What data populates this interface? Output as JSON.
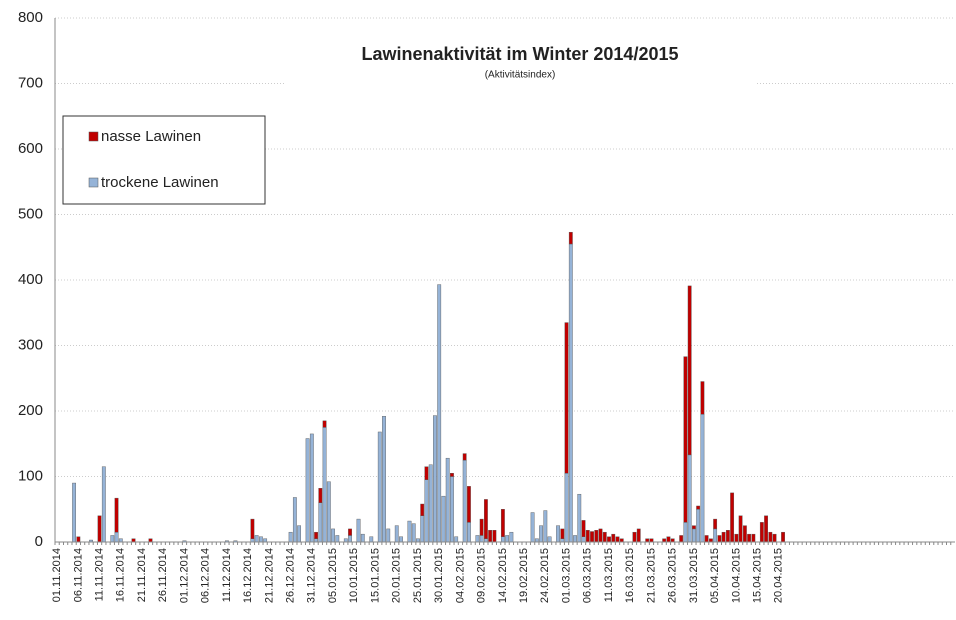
{
  "chart_data": {
    "type": "stacked_bar",
    "title": "Lawinenaktivität im Winter 2014/2015",
    "subtitle": "(Aktivitätsindex)",
    "legend": "upper left",
    "grid": true,
    "ylim": [
      0,
      800
    ],
    "yticks": [
      0,
      100,
      200,
      300,
      400,
      500,
      600,
      700,
      800
    ],
    "categories": [
      "01.11.2014",
      null,
      null,
      null,
      null,
      "06.11.2014",
      null,
      null,
      null,
      null,
      "11.11.2014",
      null,
      null,
      null,
      null,
      "16.11.2014",
      null,
      null,
      null,
      null,
      "21.11.2014",
      null,
      null,
      null,
      null,
      "26.11.2014",
      null,
      null,
      null,
      null,
      "01.12.2014",
      null,
      null,
      null,
      null,
      "06.12.2014",
      null,
      null,
      null,
      null,
      "11.12.2014",
      null,
      null,
      null,
      null,
      "16.12.2014",
      null,
      null,
      null,
      null,
      "21.12.2014",
      null,
      null,
      null,
      null,
      "26.12.2014",
      null,
      null,
      null,
      null,
      "31.12.2014",
      null,
      null,
      null,
      null,
      "05.01.2015",
      null,
      null,
      null,
      null,
      "10.01.2015",
      null,
      null,
      null,
      null,
      "15.01.2015",
      null,
      null,
      null,
      null,
      "20.01.2015",
      null,
      null,
      null,
      null,
      "25.01.2015",
      null,
      null,
      null,
      null,
      "30.01.2015",
      null,
      null,
      null,
      null,
      "04.02.2015",
      null,
      null,
      null,
      null,
      "09.02.2015",
      null,
      null,
      null,
      null,
      "14.02.2015",
      null,
      null,
      null,
      null,
      "19.02.2015",
      null,
      null,
      null,
      null,
      "24.02.2015",
      null,
      null,
      null,
      null,
      "01.03.2015",
      null,
      null,
      null,
      null,
      "06.03.2015",
      null,
      null,
      null,
      null,
      "11.03.2015",
      null,
      null,
      null,
      null,
      "16.03.2015",
      null,
      null,
      null,
      null,
      "21.03.2015",
      null,
      null,
      null,
      null,
      "26.03.2015",
      null,
      null,
      null,
      null,
      "31.03.2015",
      null,
      null,
      null,
      null,
      "05.04.2015",
      null,
      null,
      null,
      null,
      "10.04.2015",
      null,
      null,
      null,
      null,
      "15.04.2015",
      null,
      null,
      null,
      null,
      "20.04.2015",
      null,
      null,
      null,
      null,
      null,
      null,
      null,
      null,
      null,
      null,
      null,
      null,
      null,
      null,
      null,
      null,
      null,
      null,
      null,
      null,
      null,
      null,
      null,
      null,
      null,
      null,
      null,
      null,
      null,
      null,
      null,
      null,
      null,
      null,
      null,
      null,
      null,
      null,
      null,
      null,
      null
    ],
    "series": [
      {
        "name": "trockene Lawinen",
        "color": "#95b3d7",
        "values": [
          0,
          0,
          0,
          0,
          90,
          0,
          0,
          0,
          3,
          0,
          0,
          115,
          0,
          10,
          15,
          5,
          0,
          0,
          0,
          0,
          0,
          0,
          0,
          0,
          0,
          0,
          0,
          0,
          0,
          0,
          2,
          0,
          0,
          0,
          0,
          0,
          0,
          0,
          0,
          0,
          2,
          0,
          2,
          0,
          0,
          0,
          5,
          10,
          8,
          5,
          0,
          0,
          0,
          0,
          0,
          15,
          68,
          25,
          0,
          158,
          165,
          5,
          60,
          175,
          92,
          20,
          10,
          0,
          5,
          10,
          0,
          35,
          12,
          0,
          8,
          0,
          168,
          192,
          20,
          0,
          25,
          8,
          0,
          32,
          28,
          5,
          40,
          95,
          118,
          193,
          393,
          70,
          128,
          100,
          8,
          0,
          125,
          30,
          0,
          10,
          10,
          5,
          0,
          0,
          0,
          8,
          10,
          15,
          0,
          0,
          0,
          0,
          45,
          5,
          25,
          48,
          8,
          0,
          25,
          5,
          105,
          455,
          10,
          73,
          8,
          0,
          0,
          0,
          0,
          0,
          0,
          0,
          0,
          0,
          0,
          0,
          0,
          0,
          0,
          0,
          0,
          0,
          0,
          0,
          0,
          0,
          0,
          0,
          30,
          133,
          20,
          50,
          195,
          0,
          0,
          20,
          0,
          0,
          0,
          0,
          0,
          0,
          0,
          0,
          0,
          0,
          0,
          0,
          0,
          0,
          0,
          0,
          0,
          0,
          0,
          0,
          0,
          0,
          0,
          0,
          0,
          0,
          0,
          0,
          0,
          0,
          0,
          0,
          0,
          0,
          0,
          0,
          0,
          0,
          0,
          0,
          0,
          0,
          0,
          0,
          0,
          0,
          0,
          0,
          0,
          0,
          0,
          0,
          0,
          0,
          0,
          0
        ]
      },
      {
        "name": "nasse Lawinen",
        "color": "#c00000",
        "values": [
          0,
          0,
          0,
          0,
          0,
          8,
          0,
          0,
          0,
          0,
          40,
          0,
          0,
          0,
          52,
          0,
          0,
          0,
          5,
          0,
          0,
          0,
          5,
          0,
          0,
          0,
          0,
          0,
          0,
          0,
          0,
          0,
          0,
          0,
          0,
          0,
          0,
          0,
          0,
          0,
          0,
          0,
          0,
          0,
          0,
          0,
          30,
          0,
          0,
          0,
          0,
          0,
          0,
          0,
          0,
          0,
          0,
          0,
          0,
          0,
          0,
          10,
          22,
          10,
          0,
          0,
          0,
          0,
          0,
          10,
          0,
          0,
          0,
          0,
          0,
          0,
          0,
          0,
          0,
          0,
          0,
          0,
          0,
          0,
          0,
          0,
          18,
          20,
          0,
          0,
          0,
          0,
          0,
          5,
          0,
          0,
          10,
          55,
          0,
          0,
          25,
          60,
          18,
          18,
          0,
          42,
          0,
          0,
          0,
          0,
          0,
          0,
          0,
          0,
          0,
          0,
          0,
          0,
          0,
          15,
          230,
          18,
          0,
          0,
          25,
          18,
          16,
          18,
          20,
          15,
          8,
          12,
          8,
          5,
          0,
          0,
          15,
          20,
          0,
          5,
          5,
          0,
          0,
          5,
          8,
          5,
          0,
          10,
          253,
          258,
          5,
          5,
          50,
          10,
          5,
          15,
          10,
          15,
          18,
          75,
          12,
          40,
          25,
          12,
          12,
          0,
          30,
          40,
          15,
          12,
          0,
          15,
          0,
          0,
          0,
          0,
          0,
          0,
          0,
          0,
          0,
          0,
          0,
          0,
          0,
          0,
          0,
          0,
          0,
          0,
          0,
          0,
          0,
          0,
          0,
          0,
          0,
          0,
          0,
          0,
          0,
          0,
          0,
          0,
          0,
          0,
          0,
          0,
          0,
          0,
          0,
          0
        ]
      }
    ]
  }
}
